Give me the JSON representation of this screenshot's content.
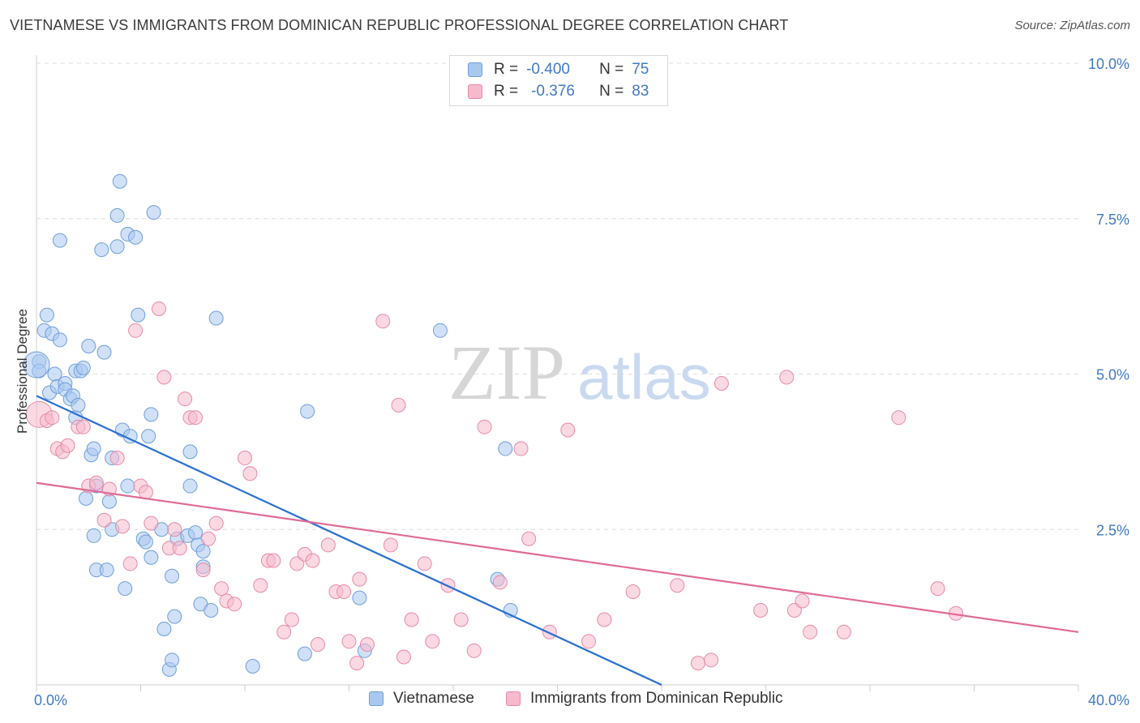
{
  "title": "VIETNAMESE VS IMMIGRANTS FROM DOMINICAN REPUBLIC PROFESSIONAL DEGREE CORRELATION CHART",
  "source": "Source: ZipAtlas.com",
  "watermark": {
    "zip": "ZIP",
    "atlas": "atlas"
  },
  "colors": {
    "blue_fill": "#a9c8f0",
    "blue_stroke": "#6f9ed8",
    "blue_line": "#2a6fd1",
    "pink_fill": "#f7b9cc",
    "pink_stroke": "#e58aa7",
    "pink_line": "#e06a96",
    "tick_label": "#3f79c8",
    "grid": "#dedede"
  },
  "legend_top": {
    "rows": [
      {
        "r_label": "R =",
        "r_value": "-0.400",
        "n_label": "N =",
        "n_value": "75"
      },
      {
        "r_label": "R =",
        "r_value": "-0.376",
        "n_label": "N =",
        "n_value": "83"
      }
    ]
  },
  "legend_bottom": [
    "Vietnamese",
    "Immigrants from Dominican Republic"
  ],
  "chart_data": {
    "type": "scatter",
    "title": "VIETNAMESE VS IMMIGRANTS FROM DOMINICAN REPUBLIC PROFESSIONAL DEGREE CORRELATION CHART",
    "xlabel": "",
    "ylabel": "Professional Degree",
    "xlim": [
      0,
      40
    ],
    "ylim": [
      0,
      10
    ],
    "x_tick_labels": [
      "0.0%",
      "40.0%"
    ],
    "y_ticks": [
      2.5,
      5.0,
      7.5,
      10.0
    ],
    "y_tick_labels": [
      "2.5%",
      "5.0%",
      "7.5%",
      "10.0%"
    ],
    "grid": true,
    "series": [
      {
        "name": "Vietnamese",
        "r": -0.4,
        "n": 75,
        "trend": {
          "x": [
            0,
            24
          ],
          "y": [
            4.65,
            0.0
          ]
        },
        "points": [
          [
            0.1,
            5.2
          ],
          [
            0.1,
            5.05
          ],
          [
            0.3,
            5.7
          ],
          [
            0.4,
            5.95
          ],
          [
            0.5,
            4.7
          ],
          [
            0.6,
            5.65
          ],
          [
            0.7,
            5.0
          ],
          [
            0.8,
            4.8
          ],
          [
            0.9,
            5.55
          ],
          [
            0.9,
            7.15
          ],
          [
            1.1,
            4.85
          ],
          [
            1.1,
            4.75
          ],
          [
            1.3,
            4.6
          ],
          [
            1.4,
            4.65
          ],
          [
            1.5,
            4.3
          ],
          [
            1.5,
            5.05
          ],
          [
            1.6,
            4.5
          ],
          [
            1.7,
            5.05
          ],
          [
            1.8,
            5.1
          ],
          [
            1.9,
            3.0
          ],
          [
            2.0,
            5.45
          ],
          [
            2.1,
            3.7
          ],
          [
            2.2,
            3.8
          ],
          [
            2.2,
            2.4
          ],
          [
            2.3,
            3.2
          ],
          [
            2.3,
            1.85
          ],
          [
            2.5,
            7.0
          ],
          [
            2.6,
            5.35
          ],
          [
            2.7,
            1.85
          ],
          [
            2.8,
            2.95
          ],
          [
            2.9,
            3.65
          ],
          [
            2.9,
            2.5
          ],
          [
            3.1,
            7.55
          ],
          [
            3.1,
            7.05
          ],
          [
            3.2,
            8.1
          ],
          [
            3.3,
            4.1
          ],
          [
            3.4,
            1.55
          ],
          [
            3.5,
            3.2
          ],
          [
            3.5,
            7.25
          ],
          [
            3.6,
            4.0
          ],
          [
            3.8,
            7.2
          ],
          [
            3.9,
            5.95
          ],
          [
            4.1,
            2.35
          ],
          [
            4.2,
            2.3
          ],
          [
            4.3,
            4.0
          ],
          [
            4.4,
            4.35
          ],
          [
            4.4,
            2.05
          ],
          [
            4.5,
            7.6
          ],
          [
            4.8,
            2.5
          ],
          [
            4.9,
            0.9
          ],
          [
            5.1,
            0.25
          ],
          [
            5.2,
            0.4
          ],
          [
            5.2,
            1.75
          ],
          [
            5.3,
            1.1
          ],
          [
            5.4,
            2.35
          ],
          [
            5.8,
            2.4
          ],
          [
            5.9,
            3.2
          ],
          [
            5.9,
            3.75
          ],
          [
            6.1,
            2.45
          ],
          [
            6.2,
            2.25
          ],
          [
            6.3,
            1.3
          ],
          [
            6.4,
            1.9
          ],
          [
            6.4,
            2.15
          ],
          [
            6.7,
            1.2
          ],
          [
            6.9,
            5.9
          ],
          [
            8.3,
            0.3
          ],
          [
            10.3,
            0.5
          ],
          [
            10.4,
            4.4
          ],
          [
            12.4,
            1.4
          ],
          [
            12.6,
            0.55
          ],
          [
            15.5,
            5.7
          ],
          [
            17.7,
            1.7
          ],
          [
            18.0,
            3.8
          ],
          [
            18.2,
            1.2
          ],
          [
            0.0,
            5.15
          ]
        ]
      },
      {
        "name": "Immigrants from Dominican Republic",
        "r": -0.376,
        "n": 83,
        "trend": {
          "x": [
            0,
            40
          ],
          "y": [
            3.25,
            0.85
          ]
        },
        "points": [
          [
            0.1,
            4.35
          ],
          [
            0.4,
            4.25
          ],
          [
            0.6,
            4.3
          ],
          [
            0.8,
            3.8
          ],
          [
            1.0,
            3.75
          ],
          [
            1.2,
            3.85
          ],
          [
            1.6,
            4.15
          ],
          [
            1.8,
            4.15
          ],
          [
            2.0,
            3.2
          ],
          [
            2.3,
            3.25
          ],
          [
            2.6,
            2.65
          ],
          [
            2.8,
            3.15
          ],
          [
            3.1,
            3.65
          ],
          [
            3.3,
            2.55
          ],
          [
            3.6,
            1.95
          ],
          [
            3.8,
            5.7
          ],
          [
            4.0,
            3.2
          ],
          [
            4.2,
            3.1
          ],
          [
            4.4,
            2.6
          ],
          [
            4.7,
            6.05
          ],
          [
            4.9,
            4.95
          ],
          [
            5.1,
            2.2
          ],
          [
            5.3,
            2.5
          ],
          [
            5.5,
            2.2
          ],
          [
            5.7,
            4.6
          ],
          [
            5.9,
            4.3
          ],
          [
            6.1,
            4.3
          ],
          [
            6.4,
            1.85
          ],
          [
            6.6,
            2.35
          ],
          [
            6.9,
            2.6
          ],
          [
            7.1,
            1.55
          ],
          [
            7.3,
            1.35
          ],
          [
            7.6,
            1.3
          ],
          [
            8.0,
            3.65
          ],
          [
            8.2,
            3.4
          ],
          [
            8.6,
            1.6
          ],
          [
            8.9,
            2.0
          ],
          [
            9.1,
            2.0
          ],
          [
            9.5,
            0.85
          ],
          [
            9.8,
            1.05
          ],
          [
            10.0,
            1.95
          ],
          [
            10.3,
            2.1
          ],
          [
            10.6,
            2.0
          ],
          [
            10.8,
            0.65
          ],
          [
            11.2,
            2.25
          ],
          [
            11.5,
            1.5
          ],
          [
            11.8,
            1.5
          ],
          [
            12.0,
            0.7
          ],
          [
            12.3,
            0.35
          ],
          [
            12.4,
            1.7
          ],
          [
            12.7,
            0.65
          ],
          [
            13.3,
            5.85
          ],
          [
            13.6,
            2.25
          ],
          [
            13.9,
            4.5
          ],
          [
            14.1,
            0.45
          ],
          [
            14.4,
            1.05
          ],
          [
            14.9,
            1.95
          ],
          [
            15.2,
            0.7
          ],
          [
            15.8,
            1.6
          ],
          [
            16.3,
            1.05
          ],
          [
            16.8,
            0.55
          ],
          [
            17.2,
            4.15
          ],
          [
            17.8,
            1.65
          ],
          [
            18.6,
            3.8
          ],
          [
            18.9,
            2.35
          ],
          [
            19.7,
            0.85
          ],
          [
            20.4,
            4.1
          ],
          [
            21.2,
            0.7
          ],
          [
            21.8,
            1.05
          ],
          [
            22.9,
            1.5
          ],
          [
            24.6,
            1.6
          ],
          [
            25.4,
            0.35
          ],
          [
            25.9,
            0.4
          ],
          [
            26.3,
            4.85
          ],
          [
            27.8,
            1.2
          ],
          [
            28.8,
            4.95
          ],
          [
            29.1,
            1.2
          ],
          [
            29.4,
            1.35
          ],
          [
            29.7,
            0.85
          ],
          [
            31.0,
            0.85
          ],
          [
            33.1,
            4.3
          ],
          [
            34.6,
            1.55
          ],
          [
            35.3,
            1.15
          ]
        ]
      }
    ]
  }
}
